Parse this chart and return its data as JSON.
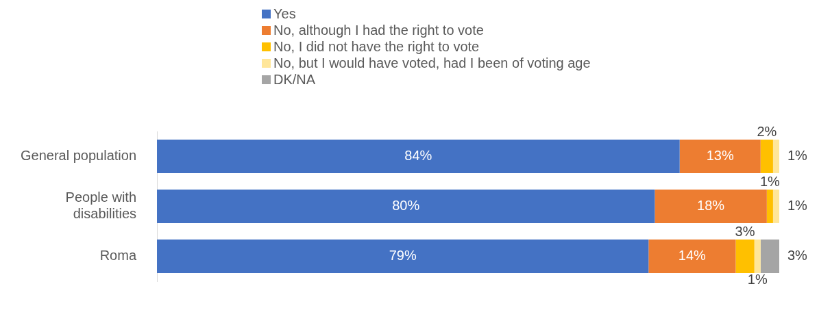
{
  "chart_data": {
    "type": "bar",
    "orientation": "horizontal",
    "stacked": true,
    "legend": "top",
    "categories": [
      "General population",
      "People with disabilities",
      "Roma"
    ],
    "series": [
      {
        "name": "Yes",
        "color": "#4472c4",
        "values": [
          84,
          80,
          79
        ],
        "value_labels": [
          "84%",
          "80%",
          "79%"
        ]
      },
      {
        "name": "No, although I had the right to vote",
        "color": "#ed7d31",
        "values": [
          13,
          18,
          14
        ],
        "value_labels": [
          "13%",
          "18%",
          "14%"
        ]
      },
      {
        "name": "No, I did not have the right to vote",
        "color": "#ffc000",
        "values": [
          2,
          1,
          3
        ],
        "value_labels": [
          "2%",
          "1%",
          "3%"
        ]
      },
      {
        "name": "No, but I would have voted, had I been of voting age",
        "color": "#ffe699",
        "values": [
          1,
          1,
          1
        ],
        "value_labels": [
          "1%",
          "1%",
          "1%"
        ]
      },
      {
        "name": "DK/NA",
        "color": "#a5a5a5",
        "values": [
          null,
          null,
          3
        ],
        "value_labels": [
          null,
          null,
          "3%"
        ]
      }
    ]
  }
}
